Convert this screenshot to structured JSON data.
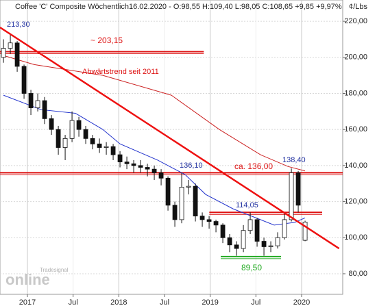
{
  "chart_data": {
    "type": "candlestick",
    "title": "Coffee 'C' Composite Wöchentlich",
    "subtitle": "16.02.2020 - O:98,55 H:109,40 L:98,05 C:108,65 +9,85 +9,97%",
    "y_label": "¢/Lbs",
    "up_color": "#ffffff",
    "down_color": "#111111",
    "x": [
      2016.738,
      2016.813,
      2016.888,
      2016.963,
      2017.038,
      2017.113,
      2017.188,
      2017.263,
      2017.338,
      2017.413,
      2017.488,
      2017.563,
      2017.638,
      2017.713,
      2017.788,
      2017.863,
      2017.938,
      2018.013,
      2018.088,
      2018.163,
      2018.238,
      2018.313,
      2018.388,
      2018.463,
      2018.538,
      2018.613,
      2018.688,
      2018.763,
      2018.838,
      2018.913,
      2018.988,
      2019.063,
      2019.138,
      2019.213,
      2019.288,
      2019.363,
      2019.438,
      2019.513,
      2019.588,
      2019.663,
      2019.738,
      2019.813,
      2019.888,
      2019.963,
      2020.038
    ],
    "open": [
      200,
      205,
      208,
      195,
      180,
      172,
      176,
      166,
      160,
      150,
      155,
      165,
      160,
      155,
      152,
      150,
      150.5,
      146,
      142,
      141,
      140,
      139,
      138,
      136,
      133,
      118,
      110,
      128,
      128.5,
      112,
      110,
      109,
      107,
      100,
      96,
      94,
      104,
      110,
      98,
      95,
      95.5,
      100,
      110,
      136,
      98.55
    ],
    "high": [
      210,
      213.3,
      209,
      196,
      182,
      180,
      178,
      168,
      162,
      157,
      170,
      167,
      162,
      157,
      155,
      153,
      152,
      148,
      145,
      143,
      143,
      141,
      140,
      138,
      134,
      120,
      136.1,
      132,
      130,
      114,
      112,
      110,
      108,
      102,
      98,
      107,
      114.05,
      111,
      100,
      98,
      103,
      114,
      138.4,
      137,
      109.4
    ],
    "low": [
      197,
      202,
      192,
      177,
      168,
      170,
      163,
      157,
      146,
      143,
      153,
      156,
      152,
      149,
      147,
      146,
      143,
      139,
      138,
      136,
      136,
      134,
      132,
      129,
      115,
      106,
      108,
      124,
      109,
      106,
      105,
      103,
      97,
      92,
      90,
      92,
      102,
      95,
      90,
      92,
      94,
      99,
      109,
      114,
      98.05
    ],
    "close": [
      205,
      208,
      195,
      180,
      172,
      176,
      166,
      160,
      150,
      155,
      165,
      160,
      155,
      152,
      150,
      150.5,
      146,
      142,
      141,
      140,
      139,
      138,
      136,
      133,
      118,
      110,
      128,
      128.5,
      112,
      110,
      109,
      107,
      100,
      96,
      94,
      104,
      110,
      98,
      95,
      95.5,
      100,
      110,
      136,
      118,
      108.65
    ],
    "ma": [
      {
        "color": "#2233cc",
        "x": [
          2016.738,
          2017.15,
          2017.525,
          2017.825,
          2018.013,
          2018.425,
          2018.725,
          2018.95,
          2019.25,
          2019.7,
          2019.925,
          2020.038
        ],
        "values": [
          179,
          171,
          169,
          160,
          152,
          143,
          135,
          124,
          116,
          107,
          108.5,
          111
        ]
      },
      {
        "color": "#cc2222",
        "x": [
          2016.738,
          2017.075,
          2017.825,
          2018.575,
          2019.1,
          2019.55,
          2019.85,
          2020.038
        ],
        "values": [
          201,
          196,
          190,
          179,
          160,
          146,
          139.5,
          137
        ]
      }
    ],
    "levels": [
      {
        "value": 203.15,
        "x": [
          2016.7,
          2018.93
        ],
        "color": "#dd1111"
      },
      {
        "value": 136,
        "x": [
          2016.7,
          2020.45
        ],
        "color": "#dd1111"
      },
      {
        "value": 114.05,
        "x": [
          2018.99,
          2020.225
        ],
        "color": "#dd1111"
      },
      {
        "value": 89.5,
        "x": [
          2019.115,
          2019.775
        ],
        "color": "#22aa22"
      }
    ],
    "trendline": {
      "x": [
        2016.7,
        2020.41
      ],
      "values": [
        216.6,
        94
      ],
      "color": "#ee1111"
    },
    "annotations": [
      "213,30",
      "~ 203,15",
      "Abwärtstrend seit 2011",
      "136,10",
      "ca. 136,00",
      "138,40",
      "114,05",
      "89,50"
    ],
    "watermark": [
      "Tradesignal",
      "online"
    ],
    "xlim": [
      2016.7,
      2020.45
    ],
    "xticks": [
      2017,
      {
        "value": 2017.5,
        "label": "Jul"
      },
      2018,
      {
        "value": 2018.5,
        "label": "Jul"
      },
      2019,
      {
        "value": 2019.5,
        "label": "Jul"
      },
      2020
    ],
    "ylim": [
      68.6,
      231.8
    ],
    "yticks": [
      {
        "value": 80,
        "label": "80,00"
      },
      {
        "value": 100,
        "label": "100,00"
      },
      {
        "value": 120,
        "label": "120,00"
      },
      {
        "value": 140,
        "label": "140,00"
      },
      {
        "value": 160,
        "label": "160,00"
      },
      {
        "value": 180,
        "label": "180,00"
      },
      {
        "value": 200,
        "label": "200,00"
      },
      {
        "value": 220,
        "label": "220,00"
      }
    ],
    "grid": true
  }
}
